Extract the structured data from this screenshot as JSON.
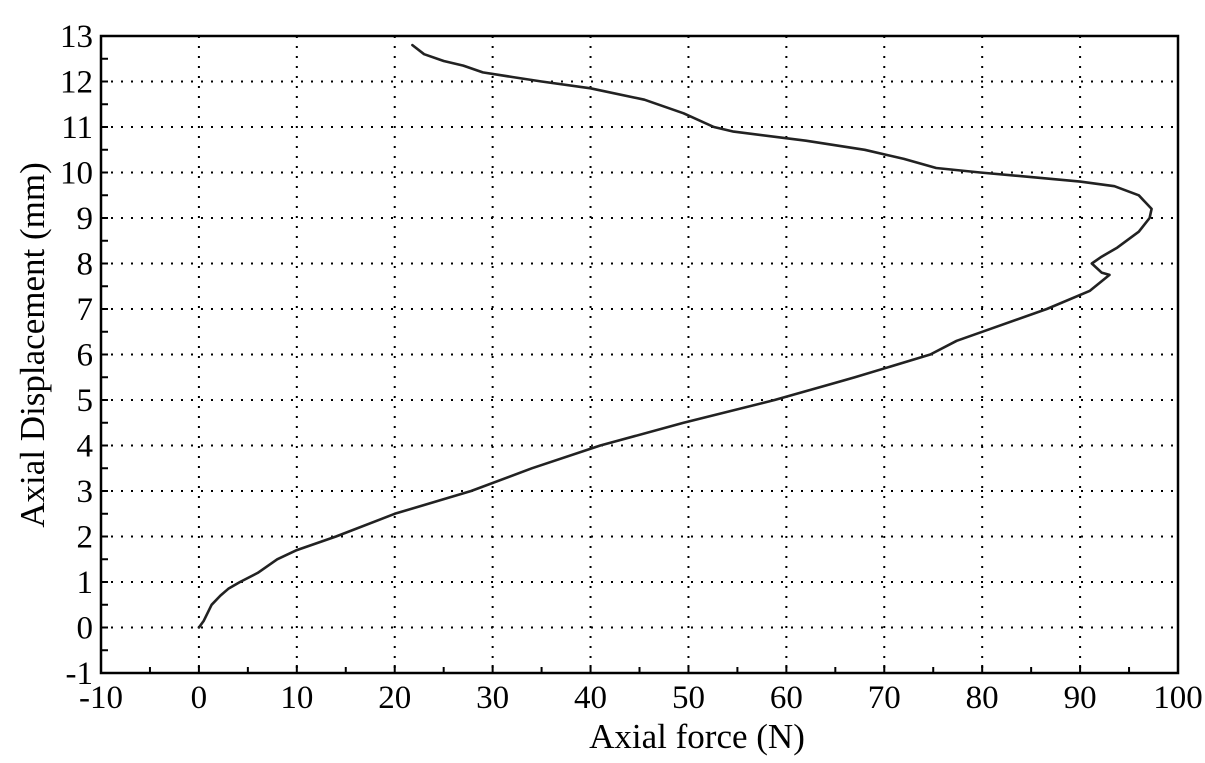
{
  "chart_data": {
    "type": "line",
    "title": "",
    "xlabel": "Axial force (N)",
    "ylabel": "Axial Displacement (mm)",
    "xlim": [
      -10,
      100
    ],
    "ylim": [
      -1,
      13
    ],
    "xticks": [
      -10,
      0,
      10,
      20,
      30,
      40,
      50,
      60,
      70,
      80,
      90,
      100
    ],
    "yticks": [
      -1,
      0,
      1,
      2,
      3,
      4,
      5,
      6,
      7,
      8,
      9,
      10,
      11,
      12,
      13
    ],
    "grid": "dotted",
    "line_color": "#222222",
    "series": [
      {
        "x": [
          0,
          0.5,
          1.3,
          2.2,
          3,
          4.2,
          6,
          8,
          10,
          14,
          20,
          27.8,
          34,
          41,
          49.5,
          58.8,
          67,
          74.7,
          77.4,
          80,
          86.6,
          91,
          93,
          92.2,
          91.2,
          92.2,
          93.8,
          96,
          97.1,
          97.3,
          96,
          93.5,
          90,
          85,
          79.8,
          75.3,
          72,
          68,
          62,
          54.6,
          52.6,
          49.5,
          45.5,
          40,
          35,
          32,
          29,
          27,
          25,
          23,
          21.8
        ],
        "y": [
          0,
          0.15,
          0.5,
          0.7,
          0.85,
          1,
          1.2,
          1.5,
          1.7,
          2,
          2.5,
          3,
          3.5,
          4,
          4.5,
          5,
          5.5,
          6,
          6.3,
          6.5,
          7,
          7.4,
          7.75,
          7.8,
          8,
          8.15,
          8.35,
          8.7,
          9,
          9.2,
          9.5,
          9.7,
          9.8,
          9.9,
          10,
          10.1,
          10.3,
          10.5,
          10.7,
          10.9,
          11,
          11.3,
          11.6,
          11.85,
          12,
          12.1,
          12.2,
          12.35,
          12.45,
          12.6,
          12.8
        ]
      }
    ]
  }
}
